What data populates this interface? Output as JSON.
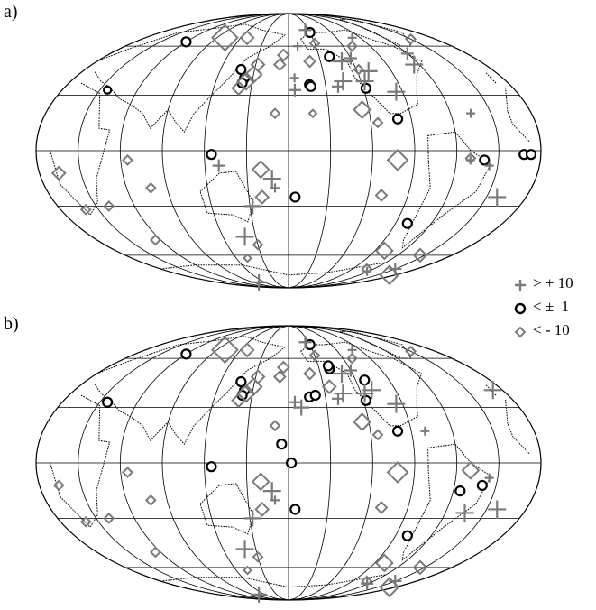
{
  "panels": [
    {
      "label": "a)",
      "symbols": [
        {
          "t": "c",
          "lon": -150,
          "lat": 70,
          "s": 5
        },
        {
          "t": "c",
          "lon": -140,
          "lat": 53,
          "s": 5
        },
        {
          "t": "c",
          "lon": -163,
          "lat": 36,
          "s": 5
        },
        {
          "t": "c",
          "lon": -162,
          "lat": 35,
          "s": 5
        },
        {
          "t": "c",
          "lon": -118,
          "lat": 34,
          "s": 5
        },
        {
          "t": "c",
          "lon": -100,
          "lat": 17,
          "s": 5
        },
        {
          "t": "c",
          "lon": -175,
          "lat": -25,
          "s": 5
        },
        {
          "t": "c",
          "lon": -40,
          "lat": -5,
          "s": 5
        },
        {
          "t": "c",
          "lon": -12,
          "lat": -2,
          "s": 5
        },
        {
          "t": "c",
          "lon": -7,
          "lat": -2,
          "s": 5
        },
        {
          "t": "c",
          "lon": 60,
          "lat": 63,
          "s": 5
        },
        {
          "t": "c",
          "lon": 138,
          "lat": 45,
          "s": 5
        },
        {
          "t": "c",
          "lon": 143,
          "lat": 40,
          "s": 5
        },
        {
          "t": "c",
          "lon": 142,
          "lat": 37,
          "s": 5
        },
        {
          "t": "c",
          "lon": -80,
          "lat": -40,
          "s": 5
        },
        {
          "t": "c",
          "lon": 125,
          "lat": -2,
          "s": 5
        },
        {
          "t": "c",
          "lon": 36,
          "lat": 33,
          "s": 4
        },
        {
          "t": "d",
          "lon": 100,
          "lat": 66,
          "s": 14
        },
        {
          "t": "d",
          "lon": 128,
          "lat": 66,
          "s": 7
        },
        {
          "t": "d",
          "lon": 145,
          "lat": 38,
          "s": 9
        },
        {
          "t": "d",
          "lon": 150,
          "lat": 42,
          "s": 9
        },
        {
          "t": "d",
          "lon": 140,
          "lat": 34,
          "s": 7
        },
        {
          "t": "d",
          "lon": 152,
          "lat": 48,
          "s": 7
        },
        {
          "t": "d",
          "lon": 175,
          "lat": 54,
          "s": 6
        },
        {
          "t": "d",
          "lon": -160,
          "lat": 50,
          "s": 6
        },
        {
          "t": "d",
          "lon": -150,
          "lat": 62,
          "s": 5
        },
        {
          "t": "d",
          "lon": -125,
          "lat": 22,
          "s": 9
        },
        {
          "t": "d",
          "lon": -115,
          "lat": 15,
          "s": 5
        },
        {
          "t": "d",
          "lon": -102,
          "lat": -5,
          "s": 11
        },
        {
          "t": "d",
          "lon": -110,
          "lat": -24,
          "s": 6
        },
        {
          "t": "d",
          "lon": -80,
          "lat": -57,
          "s": 9
        },
        {
          "t": "d",
          "lon": -35,
          "lat": -60,
          "s": 7
        },
        {
          "t": "d",
          "lon": -10,
          "lat": -75,
          "s": 10
        },
        {
          "t": "d",
          "lon": 65,
          "lat": -5,
          "s": 5
        },
        {
          "t": "d",
          "lon": 40,
          "lat": -30,
          "s": 5
        },
        {
          "t": "d",
          "lon": 78,
          "lat": -20,
          "s": 5
        },
        {
          "t": "d",
          "lon": 172,
          "lat": 48,
          "s": 6
        },
        {
          "t": "d",
          "lon": 170,
          "lat": 20,
          "s": 5
        },
        {
          "t": "d",
          "lon": 160,
          "lat": -10,
          "s": 9
        },
        {
          "t": "d",
          "lon": 160,
          "lat": -25,
          "s": 7
        },
        {
          "t": "d",
          "lon": 150,
          "lat": -53,
          "s": 5
        },
        {
          "t": "d",
          "lon": 133,
          "lat": -62,
          "s": 4
        },
        {
          "t": "d",
          "lon": 20,
          "lat": -32,
          "s": 5
        },
        {
          "t": "d",
          "lon": 55,
          "lat": -50,
          "s": 5
        },
        {
          "t": "d",
          "lon": -70,
          "lat": -70,
          "s": 5
        },
        {
          "t": "d",
          "lon": -50,
          "lat": -4,
          "s": 5
        },
        {
          "t": "d",
          "lon": 14,
          "lat": -12,
          "s": 7
        },
        {
          "t": "d",
          "lon": -162,
          "lat": 20,
          "s": 4
        },
        {
          "t": "d",
          "lon": -110,
          "lat": 60,
          "s": 5
        },
        {
          "t": "d",
          "lon": -118,
          "lat": 45,
          "s": 5
        },
        {
          "t": "d",
          "lon": -30,
          "lat": 65,
          "s": 5
        },
        {
          "t": "p",
          "lon": -130,
          "lat": 50,
          "s": 10
        },
        {
          "t": "p",
          "lon": -120,
          "lat": 52,
          "s": 7
        },
        {
          "t": "p",
          "lon": -175,
          "lat": 40,
          "s": 5
        },
        {
          "t": "p",
          "lon": -135,
          "lat": 38,
          "s": 10
        },
        {
          "t": "p",
          "lon": -140,
          "lat": 35,
          "s": 7
        },
        {
          "t": "p",
          "lon": -117,
          "lat": 38,
          "s": 10
        },
        {
          "t": "p",
          "lon": -110,
          "lat": 44,
          "s": 10
        },
        {
          "t": "p",
          "lon": -95,
          "lat": 32,
          "s": 10
        },
        {
          "t": "p",
          "lon": -65,
          "lat": 48,
          "s": 10
        },
        {
          "t": "p",
          "lon": -60,
          "lat": 55,
          "s": 7
        },
        {
          "t": "p",
          "lon": -45,
          "lat": 20,
          "s": 5
        },
        {
          "t": "p",
          "lon": -50,
          "lat": -5,
          "s": 5
        },
        {
          "t": "p",
          "lon": -22,
          "lat": -25,
          "s": 10
        },
        {
          "t": "p",
          "lon": -62,
          "lat": -72,
          "s": 5
        },
        {
          "t": "p",
          "lon": -30,
          "lat": -70,
          "s": 7
        },
        {
          "t": "p",
          "lon": 168,
          "lat": -15,
          "s": 10
        },
        {
          "t": "p",
          "lon": 152,
          "lat": -30,
          "s": 9
        },
        {
          "t": "p",
          "lon": 140,
          "lat": -48,
          "s": 10
        },
        {
          "t": "p",
          "lon": 105,
          "lat": -82,
          "s": 9
        },
        {
          "t": "p",
          "lon": 170,
          "lat": -20,
          "s": 5
        },
        {
          "t": "p",
          "lon": 130,
          "lat": -8,
          "s": 7
        },
        {
          "t": "p",
          "lon": -170,
          "lat": 60,
          "s": 5
        },
        {
          "t": "p",
          "lon": -155,
          "lat": 72,
          "s": 7
        },
        {
          "t": "p",
          "lon": -100,
          "lat": 66,
          "s": 5
        },
        {
          "t": "p",
          "lon": -36,
          "lat": -8,
          "s": 5
        },
        {
          "t": "p",
          "lon": -175,
          "lat": 33,
          "s": 7
        }
      ]
    },
    {
      "label": "b)",
      "symbols": [
        {
          "t": "c",
          "lon": -150,
          "lat": 70,
          "s": 5
        },
        {
          "t": "c",
          "lon": -140,
          "lat": 53,
          "s": 5
        },
        {
          "t": "c",
          "lon": -163,
          "lat": 36,
          "s": 5
        },
        {
          "t": "c",
          "lon": -158,
          "lat": 37,
          "s": 5
        },
        {
          "t": "c",
          "lon": -118,
          "lat": 34,
          "s": 5
        },
        {
          "t": "c",
          "lon": -100,
          "lat": 17,
          "s": 5
        },
        {
          "t": "c",
          "lon": -140,
          "lat": 55,
          "s": 5
        },
        {
          "t": "c",
          "lon": -175,
          "lat": -25,
          "s": 5
        },
        {
          "t": "c",
          "lon": -40,
          "lat": -12,
          "s": 5
        },
        {
          "t": "c",
          "lon": -55,
          "lat": -15,
          "s": 5
        },
        {
          "t": "c",
          "lon": 60,
          "lat": 63,
          "s": 5
        },
        {
          "t": "c",
          "lon": 138,
          "lat": 45,
          "s": 5
        },
        {
          "t": "c",
          "lon": 143,
          "lat": 40,
          "s": 5
        },
        {
          "t": "c",
          "lon": 142,
          "lat": 37,
          "s": 5
        },
        {
          "t": "c",
          "lon": -80,
          "lat": -40,
          "s": 5
        },
        {
          "t": "c",
          "lon": 125,
          "lat": -2,
          "s": 5
        },
        {
          "t": "c",
          "lon": 36,
          "lat": 33,
          "s": 5
        },
        {
          "t": "c",
          "lon": 175,
          "lat": 10,
          "s": 5
        },
        {
          "t": "c",
          "lon": -178,
          "lat": 0,
          "s": 5
        },
        {
          "t": "c",
          "lon": -112,
          "lat": 46,
          "s": 5
        },
        {
          "t": "d",
          "lon": 100,
          "lat": 66,
          "s": 14
        },
        {
          "t": "d",
          "lon": 128,
          "lat": 66,
          "s": 7
        },
        {
          "t": "d",
          "lon": 145,
          "lat": 38,
          "s": 9
        },
        {
          "t": "d",
          "lon": 150,
          "lat": 42,
          "s": 9
        },
        {
          "t": "d",
          "lon": 140,
          "lat": 34,
          "s": 7
        },
        {
          "t": "d",
          "lon": 152,
          "lat": 48,
          "s": 7
        },
        {
          "t": "d",
          "lon": 175,
          "lat": 54,
          "s": 6
        },
        {
          "t": "d",
          "lon": -160,
          "lat": 50,
          "s": 6
        },
        {
          "t": "d",
          "lon": -150,
          "lat": 62,
          "s": 5
        },
        {
          "t": "d",
          "lon": -125,
          "lat": 22,
          "s": 9
        },
        {
          "t": "d",
          "lon": -115,
          "lat": 15,
          "s": 5
        },
        {
          "t": "d",
          "lon": -102,
          "lat": -5,
          "s": 11
        },
        {
          "t": "d",
          "lon": -110,
          "lat": -24,
          "s": 6
        },
        {
          "t": "d",
          "lon": -80,
          "lat": -57,
          "s": 9
        },
        {
          "t": "d",
          "lon": -35,
          "lat": -60,
          "s": 7
        },
        {
          "t": "d",
          "lon": -10,
          "lat": -75,
          "s": 10
        },
        {
          "t": "d",
          "lon": 65,
          "lat": -5,
          "s": 5
        },
        {
          "t": "d",
          "lon": 40,
          "lat": -30,
          "s": 5
        },
        {
          "t": "d",
          "lon": 78,
          "lat": -20,
          "s": 5
        },
        {
          "t": "d",
          "lon": 172,
          "lat": 48,
          "s": 6
        },
        {
          "t": "d",
          "lon": 170,
          "lat": 20,
          "s": 5
        },
        {
          "t": "d",
          "lon": 160,
          "lat": -10,
          "s": 9
        },
        {
          "t": "d",
          "lon": 160,
          "lat": -25,
          "s": 7
        },
        {
          "t": "d",
          "lon": 150,
          "lat": -53,
          "s": 5
        },
        {
          "t": "d",
          "lon": 133,
          "lat": -62,
          "s": 4
        },
        {
          "t": "d",
          "lon": 20,
          "lat": -32,
          "s": 5
        },
        {
          "t": "d",
          "lon": 55,
          "lat": -50,
          "s": 5
        },
        {
          "t": "d",
          "lon": -70,
          "lat": -70,
          "s": 5
        },
        {
          "t": "d",
          "lon": -50,
          "lat": -4,
          "s": 9
        },
        {
          "t": "d",
          "lon": 14,
          "lat": -12,
          "s": 5
        },
        {
          "t": "d",
          "lon": -110,
          "lat": 60,
          "s": 5
        },
        {
          "t": "d",
          "lon": -30,
          "lat": 65,
          "s": 5
        },
        {
          "t": "d",
          "lon": -145,
          "lat": 42,
          "s": 7
        },
        {
          "t": "p",
          "lon": -130,
          "lat": 50,
          "s": 10
        },
        {
          "t": "p",
          "lon": -120,
          "lat": 52,
          "s": 7
        },
        {
          "t": "p",
          "lon": -170,
          "lat": 30,
          "s": 9
        },
        {
          "t": "p",
          "lon": -135,
          "lat": 38,
          "s": 10
        },
        {
          "t": "p",
          "lon": -140,
          "lat": 35,
          "s": 7
        },
        {
          "t": "p",
          "lon": -117,
          "lat": 38,
          "s": 10
        },
        {
          "t": "p",
          "lon": -110,
          "lat": 40,
          "s": 10
        },
        {
          "t": "p",
          "lon": -95,
          "lat": 32,
          "s": 10
        },
        {
          "t": "p",
          "lon": -45,
          "lat": -27,
          "s": 10
        },
        {
          "t": "p",
          "lon": -22,
          "lat": -25,
          "s": 10
        },
        {
          "t": "p",
          "lon": -62,
          "lat": -72,
          "s": 7
        },
        {
          "t": "p",
          "lon": -30,
          "lat": -70,
          "s": 7
        },
        {
          "t": "p",
          "lon": 168,
          "lat": -15,
          "s": 10
        },
        {
          "t": "p",
          "lon": 152,
          "lat": -30,
          "s": 9
        },
        {
          "t": "p",
          "lon": 140,
          "lat": -48,
          "s": 10
        },
        {
          "t": "p",
          "lon": 105,
          "lat": -82,
          "s": 9
        },
        {
          "t": "p",
          "lon": 170,
          "lat": -20,
          "s": 5
        },
        {
          "t": "p",
          "lon": -155,
          "lat": 72,
          "s": 7
        },
        {
          "t": "p",
          "lon": -100,
          "lat": 66,
          "s": 5
        },
        {
          "t": "p",
          "lon": -36,
          "lat": -8,
          "s": 5
        },
        {
          "t": "p",
          "lon": -175,
          "lat": 33,
          "s": 7
        },
        {
          "t": "p",
          "lon": -8,
          "lat": 40,
          "s": 10
        },
        {
          "t": "p",
          "lon": -80,
          "lat": 17,
          "s": 5
        }
      ]
    }
  ],
  "legend": {
    "plus_label": "> + 10",
    "circle_label": "< ±  1",
    "diamond_label": "< - 10"
  },
  "colors": {
    "ink": "#000000",
    "symbol_gray": "#7a7a7a",
    "grid": "#000000"
  },
  "projection": "Mollweide (Hammer-Aitoff style), Pacific-centered",
  "icons": [
    "plus-icon",
    "circle-icon",
    "diamond-icon"
  ]
}
